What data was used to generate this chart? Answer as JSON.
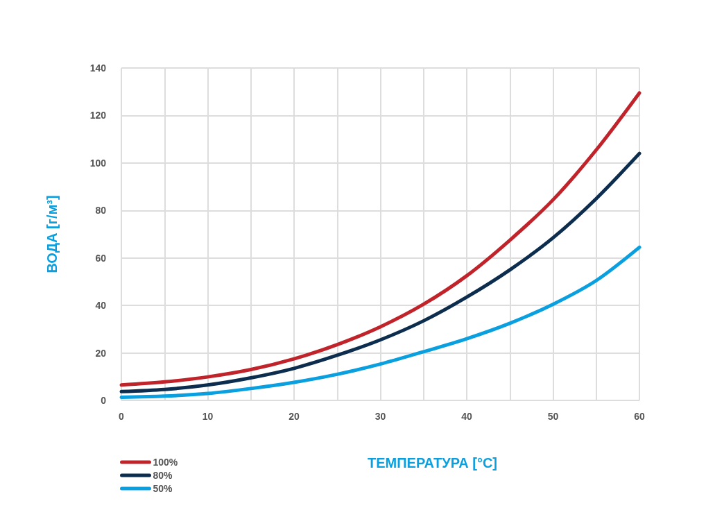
{
  "chart_data": {
    "type": "line",
    "xlabel": "ТЕМПЕРАТУРА [°C]",
    "ylabel": "ВОДА [г/м³]",
    "x": [
      0,
      5,
      10,
      15,
      20,
      25,
      30,
      35,
      40,
      45,
      50,
      55,
      60
    ],
    "series": [
      {
        "name": "100%",
        "color": "#c1232b",
        "values": [
          6.5,
          7.8,
          9.9,
          13,
          17.5,
          23.5,
          31,
          40.5,
          52.5,
          67.5,
          84.5,
          105.5,
          129.5
        ]
      },
      {
        "name": "80%",
        "color": "#0d2d4f",
        "values": [
          3.7,
          4.6,
          6.5,
          9.5,
          13.5,
          19,
          25.5,
          33.5,
          43.5,
          55,
          68.5,
          85,
          104
        ]
      },
      {
        "name": "50%",
        "color": "#0aa0e0",
        "values": [
          1.3,
          1.8,
          2.9,
          5,
          7.6,
          11,
          15.3,
          20.5,
          26,
          32.5,
          40.5,
          50.5,
          64.5
        ]
      }
    ],
    "xlim": [
      0,
      60
    ],
    "xticks": [
      0,
      {
        "value": 5,
        "label": null
      },
      10,
      {
        "value": 15,
        "label": null
      },
      20,
      {
        "value": 25,
        "label": null
      },
      30,
      {
        "value": 35,
        "label": null
      },
      40,
      {
        "value": 45,
        "label": null
      },
      50,
      {
        "value": 55,
        "label": null
      },
      60
    ],
    "ylim": [
      0,
      140
    ],
    "yticks": [
      0,
      20,
      40,
      60,
      80,
      100,
      120,
      140
    ],
    "grid": true,
    "legend": "bottom left",
    "marker": "none",
    "line_style": "solid"
  }
}
